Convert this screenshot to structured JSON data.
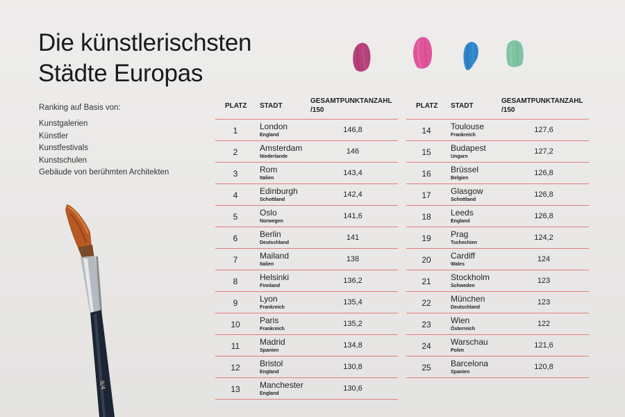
{
  "title_line1": "Die künstlerischsten",
  "title_line2": "Städte Europas",
  "criteria_lead": "Ranking auf Basis von:",
  "criteria": [
    "Kunstgalerien",
    "Künstler",
    "Kunstfestivals",
    "Kunstschulen",
    "Gebäude von berühmten Architekten"
  ],
  "headers": {
    "platz": "PLATZ",
    "stadt": "STADT",
    "score_line1": "GESAMTPUNKTANZAHL",
    "score_line2": "/150"
  },
  "paint_colors": [
    "#b5417a",
    "#e0559a",
    "#2f85c9",
    "#7fc3a4"
  ],
  "rows": [
    {
      "rank": "1",
      "city": "London",
      "country": "England",
      "score": "146,8"
    },
    {
      "rank": "2",
      "city": "Amsterdam",
      "country": "Niederlande",
      "score": "146"
    },
    {
      "rank": "3",
      "city": "Rom",
      "country": "Italien",
      "score": "143,4"
    },
    {
      "rank": "4",
      "city": "Edinburgh",
      "country": "Schottland",
      "score": "142,4"
    },
    {
      "rank": "5",
      "city": "Oslo",
      "country": "Norwegen",
      "score": "141,6"
    },
    {
      "rank": "6",
      "city": "Berlin",
      "country": "Deutschland",
      "score": "141"
    },
    {
      "rank": "7",
      "city": "Mailand",
      "country": "Italien",
      "score": "138"
    },
    {
      "rank": "8",
      "city": "Helsinki",
      "country": "Finnland",
      "score": "136,2"
    },
    {
      "rank": "9",
      "city": "Lyon",
      "country": "Frankreich",
      "score": "135,4"
    },
    {
      "rank": "10",
      "city": "Paris",
      "country": "Frankreich",
      "score": "135,2"
    },
    {
      "rank": "11",
      "city": "Madrid",
      "country": "Spanien",
      "score": "134,8"
    },
    {
      "rank": "12",
      "city": "Bristol",
      "country": "England",
      "score": "130,8"
    },
    {
      "rank": "13",
      "city": "Manchester",
      "country": "England",
      "score": "130,6"
    },
    {
      "rank": "14",
      "city": "Toulouse",
      "country": "Frankreich",
      "score": "127,6"
    },
    {
      "rank": "15",
      "city": "Budapest",
      "country": "Ungarn",
      "score": "127,2"
    },
    {
      "rank": "16",
      "city": "Brüssel",
      "country": "Belgien",
      "score": "126,8"
    },
    {
      "rank": "17",
      "city": "Glasgow",
      "country": "Schottland",
      "score": "126,8"
    },
    {
      "rank": "18",
      "city": "Leeds",
      "country": "England",
      "score": "126,8"
    },
    {
      "rank": "19",
      "city": "Prag",
      "country": "Tschechien",
      "score": "124,2"
    },
    {
      "rank": "20",
      "city": "Cardiff",
      "country": "Wales",
      "score": "124"
    },
    {
      "rank": "21",
      "city": "Stockholm",
      "country": "Schweden",
      "score": "123"
    },
    {
      "rank": "22",
      "city": "München",
      "country": "Deutschland",
      "score": "123"
    },
    {
      "rank": "23",
      "city": "Wien",
      "country": "Österreich",
      "score": "122"
    },
    {
      "rank": "24",
      "city": "Warschau",
      "country": "Polen",
      "score": "121,6"
    },
    {
      "rank": "25",
      "city": "Barcelona",
      "country": "Spanien",
      "score": "120,8"
    }
  ]
}
